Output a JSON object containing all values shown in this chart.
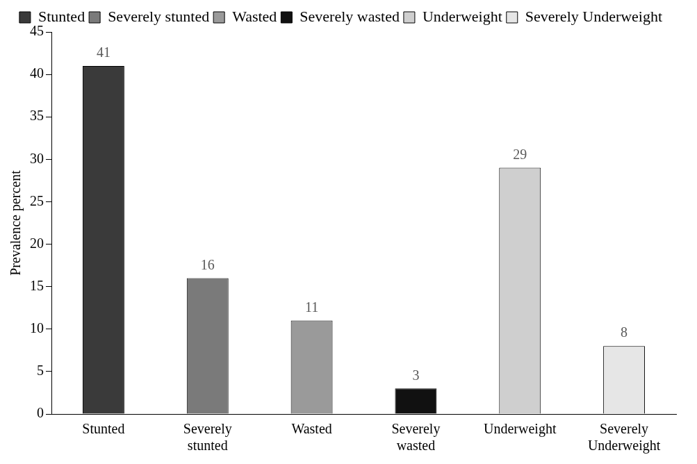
{
  "chart_data": {
    "type": "bar",
    "ylabel": "Prevalence percent",
    "categories": [
      "Stunted",
      "Severely stunted",
      "Wasted",
      "Severely wasted",
      "Underweight",
      "Severely Underweight"
    ],
    "series": [
      {
        "name": "Stunted",
        "color": "#3a3a3a",
        "values": [
          41,
          null,
          null,
          null,
          null,
          null
        ]
      },
      {
        "name": "Severely stunted",
        "color": "#7a7a7a",
        "values": [
          null,
          16,
          null,
          null,
          null,
          null
        ]
      },
      {
        "name": "Wasted",
        "color": "#9a9a9a",
        "values": [
          null,
          null,
          11,
          null,
          null,
          null
        ]
      },
      {
        "name": "Severely wasted",
        "color": "#111111",
        "values": [
          null,
          null,
          null,
          3,
          null,
          null
        ]
      },
      {
        "name": "Underweight",
        "color": "#cfcfcf",
        "values": [
          null,
          null,
          null,
          null,
          29,
          null
        ]
      },
      {
        "name": "Severely Underweight",
        "color": "#e6e6e6",
        "values": [
          null,
          null,
          null,
          null,
          null,
          8
        ]
      }
    ],
    "ylim": [
      0,
      45
    ],
    "yticks": [
      0,
      5,
      10,
      15,
      20,
      25,
      30,
      35,
      40,
      45
    ],
    "grid": false,
    "legend": "top",
    "data_labels": true
  }
}
